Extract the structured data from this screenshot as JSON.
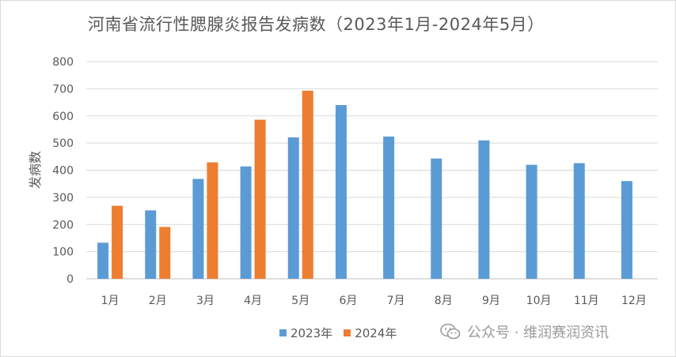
{
  "chart_data": {
    "type": "bar",
    "title": "河南省流行性腮腺炎报告发病数（2023年1月-2024年5月）",
    "ylabel": "发病数",
    "xlabel": "",
    "ylim": [
      0,
      800
    ],
    "yticks": [
      0,
      100,
      200,
      300,
      400,
      500,
      600,
      700,
      800
    ],
    "grid": true,
    "legend_position": "bottom",
    "categories": [
      "1月",
      "2月",
      "3月",
      "4月",
      "5月",
      "6月",
      "7月",
      "8月",
      "9月",
      "10月",
      "11月",
      "12月"
    ],
    "series": [
      {
        "name": "2023年",
        "color": "#5b9bd5",
        "values": [
          133,
          252,
          368,
          414,
          521,
          640,
          524,
          443,
          510,
          420,
          426,
          360
        ]
      },
      {
        "name": "2024年",
        "color": "#ed7d31",
        "values": [
          269,
          191,
          429,
          586,
          693,
          null,
          null,
          null,
          null,
          null,
          null,
          null
        ]
      }
    ]
  },
  "watermark": {
    "icon": "wechat-icon",
    "text": "公众号 · 维润赛润资讯"
  }
}
